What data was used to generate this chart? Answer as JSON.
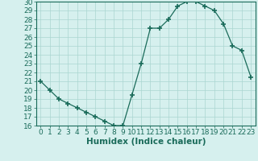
{
  "x": [
    0,
    1,
    2,
    3,
    4,
    5,
    6,
    7,
    8,
    9,
    10,
    11,
    12,
    13,
    14,
    15,
    16,
    17,
    18,
    19,
    20,
    21,
    22,
    23
  ],
  "y": [
    21,
    20,
    19,
    18.5,
    18,
    17.5,
    17,
    16.5,
    16,
    16,
    19.5,
    23,
    27,
    27,
    28,
    29.5,
    30,
    30,
    29.5,
    29,
    27.5,
    25,
    24.5,
    21.5
  ],
  "line_color": "#1a6b5a",
  "marker": "+",
  "marker_size": 4,
  "marker_lw": 1.2,
  "bg_color": "#d6f0ee",
  "grid_color": "#aad6d0",
  "xlabel": "Humidex (Indice chaleur)",
  "xlim": [
    -0.5,
    23.5
  ],
  "ylim": [
    16,
    30
  ],
  "yticks": [
    16,
    17,
    18,
    19,
    20,
    21,
    22,
    23,
    24,
    25,
    26,
    27,
    28,
    29,
    30
  ],
  "xticks": [
    0,
    1,
    2,
    3,
    4,
    5,
    6,
    7,
    8,
    9,
    10,
    11,
    12,
    13,
    14,
    15,
    16,
    17,
    18,
    19,
    20,
    21,
    22,
    23
  ],
  "tick_fontsize": 6.5,
  "xlabel_fontsize": 7.5,
  "line_width": 0.9
}
